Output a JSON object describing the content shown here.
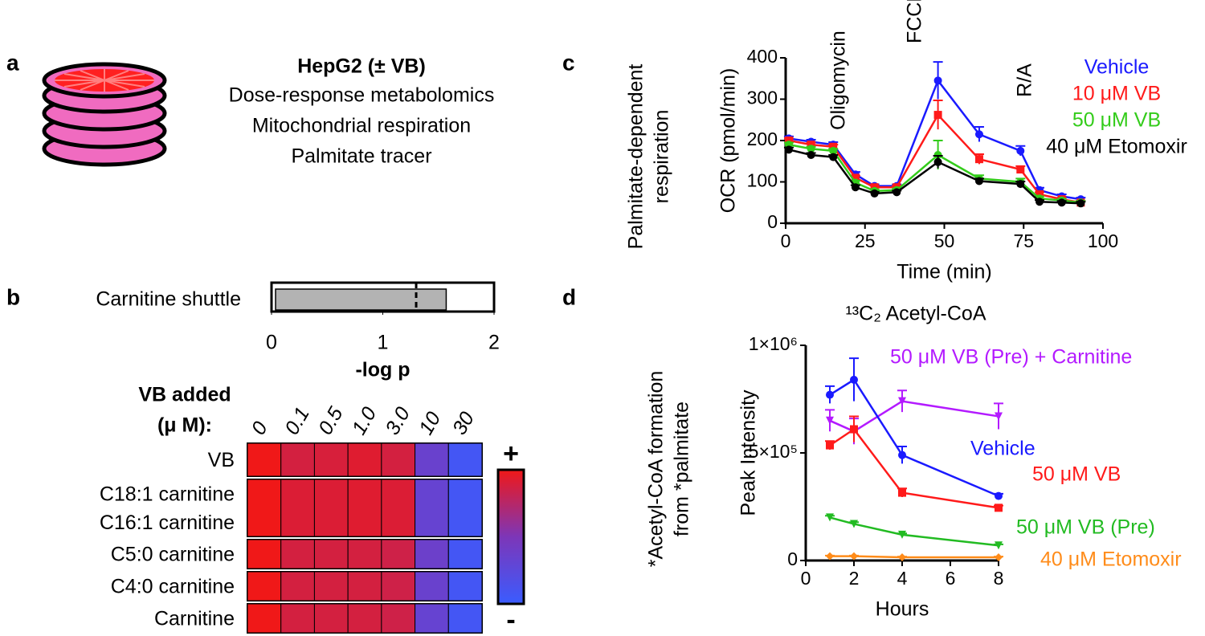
{
  "panel_labels": [
    "a",
    "b",
    "c",
    "d"
  ],
  "panel_a": {
    "title": "HepG2 (± VB)",
    "lines": [
      "Dose-response metabolomics",
      "Mitochondrial respiration",
      "Palmitate tracer"
    ]
  },
  "chart_data": [
    {
      "type": "hbar",
      "categories": [
        "Carnitine shuttle"
      ],
      "values": [
        1.57
      ],
      "threshold": 1.3,
      "color": "#b3b3b3",
      "xlim": [
        0,
        2
      ],
      "xticks": [
        0,
        1,
        2
      ],
      "xlabel": "-log p"
    },
    {
      "type": "heatmap",
      "xlabel": [
        "VB added",
        "(μ M):"
      ],
      "categories": [
        "0",
        "0.1",
        "0.5",
        "1.0",
        "3.0",
        "10",
        "30"
      ],
      "rows": [
        [
          "VB"
        ],
        [
          "C18:1 carnitine",
          "C16:1 carnitine"
        ],
        [
          "C5:0 carnitine"
        ],
        [
          "C4:0 carnitine"
        ],
        [
          "Carnitine"
        ]
      ],
      "values": [
        [
          1,
          0.75,
          0.78,
          0.85,
          0.75,
          -0.3,
          -0.85
        ],
        [
          1,
          0.82,
          0.82,
          0.85,
          0.82,
          -0.35,
          -0.85
        ],
        [
          1,
          0.75,
          0.75,
          0.75,
          0.7,
          -0.25,
          -0.85
        ],
        [
          1,
          0.75,
          0.75,
          0.75,
          0.7,
          -0.3,
          -0.85
        ],
        [
          1,
          0.75,
          0.75,
          0.75,
          0.7,
          -0.35,
          -0.85
        ]
      ],
      "clim": [
        -1,
        1
      ],
      "colormap": [
        "#3a5cff",
        "#7d36b8",
        "#f01818"
      ],
      "colorbar_labels": [
        "+",
        "-"
      ]
    },
    {
      "type": "line",
      "ylabel": "OCR (pmol/min)",
      "outer_ylabel": [
        "Palmitate-dependent",
        "respiration"
      ],
      "xlabel": "Time (min)",
      "annotations": [
        "Oligomycin",
        "FCCP",
        "R/A"
      ],
      "x": [
        1,
        8,
        15,
        22,
        28,
        35,
        48,
        61,
        74,
        80,
        87,
        93
      ],
      "series": [
        {
          "name": "Vehicle",
          "color": "#1a1aff",
          "marker": "circle",
          "values": [
            205,
            197,
            190,
            118,
            90,
            90,
            345,
            215,
            175,
            80,
            65,
            58
          ],
          "errors": [
            5,
            5,
            6,
            6,
            4,
            4,
            45,
            18,
            12,
            6,
            5,
            4
          ]
        },
        {
          "name": "10 μM VB",
          "color": "#ff1a1a",
          "marker": "square",
          "values": [
            200,
            190,
            185,
            110,
            87,
            87,
            262,
            155,
            130,
            70,
            58,
            50
          ],
          "errors": [
            5,
            5,
            5,
            5,
            4,
            4,
            35,
            12,
            8,
            5,
            4,
            4
          ]
        },
        {
          "name": "50 μM VB",
          "color": "#33cc1a",
          "marker": "circle",
          "values": [
            190,
            180,
            175,
            98,
            78,
            80,
            165,
            108,
            100,
            60,
            55,
            50
          ],
          "errors": [
            5,
            5,
            5,
            5,
            4,
            4,
            35,
            8,
            8,
            5,
            4,
            4
          ]
        },
        {
          "name": "40 μM Etomoxir",
          "color": "#000000",
          "marker": "circle",
          "values": [
            178,
            165,
            160,
            87,
            72,
            75,
            148,
            102,
            95,
            52,
            50,
            48
          ],
          "errors": [
            5,
            5,
            5,
            5,
            4,
            4,
            15,
            6,
            6,
            4,
            4,
            4
          ]
        }
      ],
      "xlim": [
        0,
        100
      ],
      "xticks": [
        0,
        25,
        50,
        75,
        100
      ],
      "ylim": [
        0,
        400
      ],
      "yticks": [
        0,
        100,
        200,
        300,
        400
      ]
    },
    {
      "type": "line",
      "title": "¹³C₂ Acetyl-CoA",
      "ylabel": "Peak Intensity",
      "outer_ylabel": [
        "*Acetyl-CoA  formation",
        "from *palmitate"
      ],
      "xlabel": "Hours",
      "x": [
        1,
        2,
        4,
        8
      ],
      "series": [
        {
          "name": "50 μM VB (Pre) + Carnitine",
          "color": "#b31aff",
          "marker": "triangle",
          "values": [
            650000,
            600000,
            740000,
            670000
          ],
          "errors": [
            50000,
            60000,
            50000,
            60000
          ]
        },
        {
          "name": "Vehicle",
          "color": "#1a1aff",
          "marker": "circle",
          "values": [
            770000,
            840000,
            490000,
            300000
          ],
          "errors": [
            40000,
            100000,
            40000,
            10000
          ]
        },
        {
          "name": "50 μM VB",
          "color": "#ff1a1a",
          "marker": "square",
          "values": [
            535000,
            610000,
            315000,
            245000
          ],
          "errors": [
            20000,
            60000,
            20000,
            10000
          ]
        },
        {
          "name": "50 μM VB (Pre)",
          "color": "#22bb22",
          "marker": "triangle",
          "values": [
            200000,
            170000,
            120000,
            70000
          ],
          "errors": [
            8000,
            8000,
            6000,
            5000
          ]
        },
        {
          "name": "40 μM Etomoxir",
          "color": "#ff8c1a",
          "marker": "diamond",
          "values": [
            20000,
            20000,
            15000,
            15000
          ],
          "errors": [
            3000,
            3000,
            3000,
            3000
          ]
        }
      ],
      "xlim": [
        0,
        8
      ],
      "xticks": [
        0,
        2,
        4,
        6,
        8
      ],
      "ylim": [
        0,
        1000000
      ],
      "yticks": [
        0,
        {
          "value": 500000,
          "label": "5×10⁵"
        },
        {
          "value": 1000000,
          "label": "1×10⁶"
        }
      ]
    }
  ]
}
